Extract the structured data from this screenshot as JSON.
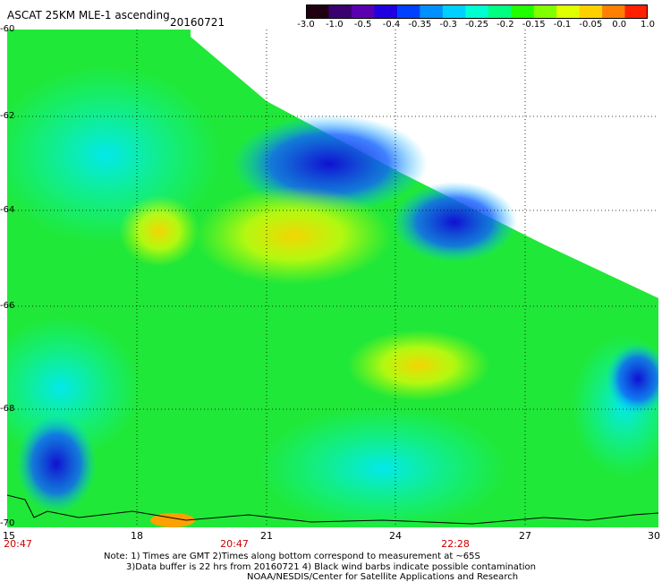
{
  "header": {
    "title": "ASCAT 25KM MLE-1 ascending",
    "date": "20160721"
  },
  "colorbar": {
    "labels": [
      "-3.0",
      "-1.0",
      "-0.5",
      "-0.4",
      "-0.35",
      "-0.3",
      "-0.25",
      "-0.2",
      "-0.15",
      "-0.1",
      "-0.05",
      "0.0",
      "1.0"
    ],
    "colors": [
      "#200010",
      "#3a0070",
      "#5a00b0",
      "#2000e0",
      "#0040ff",
      "#0090ff",
      "#00d0ff",
      "#00ffd0",
      "#00ff80",
      "#20ff00",
      "#80ff00",
      "#e0ff00",
      "#ffd000",
      "#ff8000",
      "#ff2000"
    ]
  },
  "axes": {
    "lat_labels": [
      "-60",
      "-62",
      "-64",
      "-66",
      "-68",
      "-70"
    ],
    "lon_labels": [
      "15",
      "18",
      "21",
      "24",
      "27",
      "30"
    ],
    "time_labels": [
      "20:47",
      "20:47",
      "22:28"
    ]
  },
  "notes": {
    "line1": "Note: 1) Times are GMT 2)Times along bottom correspond to measurement at ~65S",
    "line2": "3)Data buffer is 22 hrs from 20160721 4) Black wind barbs indicate possible contamination",
    "line3": "NOAA/NESDIS/Center for Satellite Applications and Research"
  }
}
